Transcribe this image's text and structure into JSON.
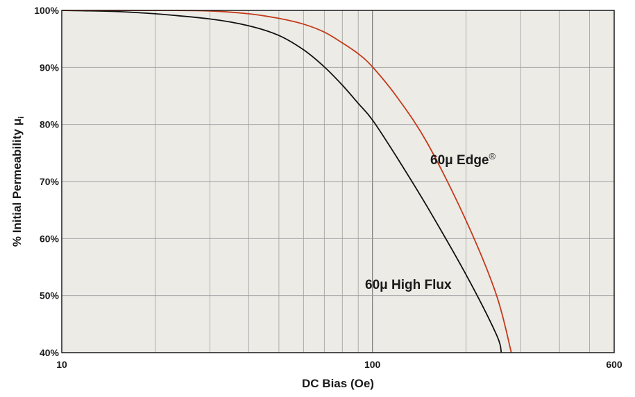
{
  "chart_data": {
    "type": "line",
    "xscale": "log",
    "xlim": [
      10,
      600
    ],
    "ylim": [
      40,
      100
    ],
    "xlabel": "DC Bias (Oe)",
    "ylabel": "% Initial Permeability μ",
    "ylabel_subscript": "i",
    "xticks": [
      {
        "value": 10,
        "label": "10"
      },
      {
        "value": 100,
        "label": "100"
      },
      {
        "value": 600,
        "label": "600"
      }
    ],
    "yticks": [
      {
        "value": 40,
        "label": "40%"
      },
      {
        "value": 50,
        "label": "50%"
      },
      {
        "value": 60,
        "label": "60%"
      },
      {
        "value": 70,
        "label": "70%"
      },
      {
        "value": 80,
        "label": "80%"
      },
      {
        "value": 90,
        "label": "90%"
      },
      {
        "value": 100,
        "label": "100%"
      }
    ],
    "grid": true,
    "colors": {
      "plot_bg": "#ecebe6",
      "grid": "#9d9d9d",
      "frame": "#1a1a1a"
    },
    "series": [
      {
        "name": "60μ High Flux",
        "color": "#111111",
        "x": [
          10,
          15,
          20,
          30,
          40,
          50,
          60,
          70,
          80,
          90,
          100,
          120,
          150,
          200,
          250,
          260
        ],
        "y": [
          100,
          99.8,
          99.4,
          98.5,
          97.3,
          95.6,
          93.1,
          90.1,
          86.9,
          83.7,
          80.8,
          74.2,
          65.6,
          53.7,
          43.3,
          40
        ]
      },
      {
        "name": "60μ Edge",
        "name_mark": "®",
        "color": "#c43a1a",
        "x": [
          10,
          20,
          30,
          40,
          50,
          60,
          70,
          80,
          90,
          100,
          120,
          150,
          200,
          250,
          280
        ],
        "y": [
          100,
          100,
          99.9,
          99.4,
          98.6,
          97.6,
          96.2,
          94.3,
          92.4,
          90.1,
          84.8,
          76.8,
          63.2,
          50.3,
          40
        ]
      }
    ]
  }
}
